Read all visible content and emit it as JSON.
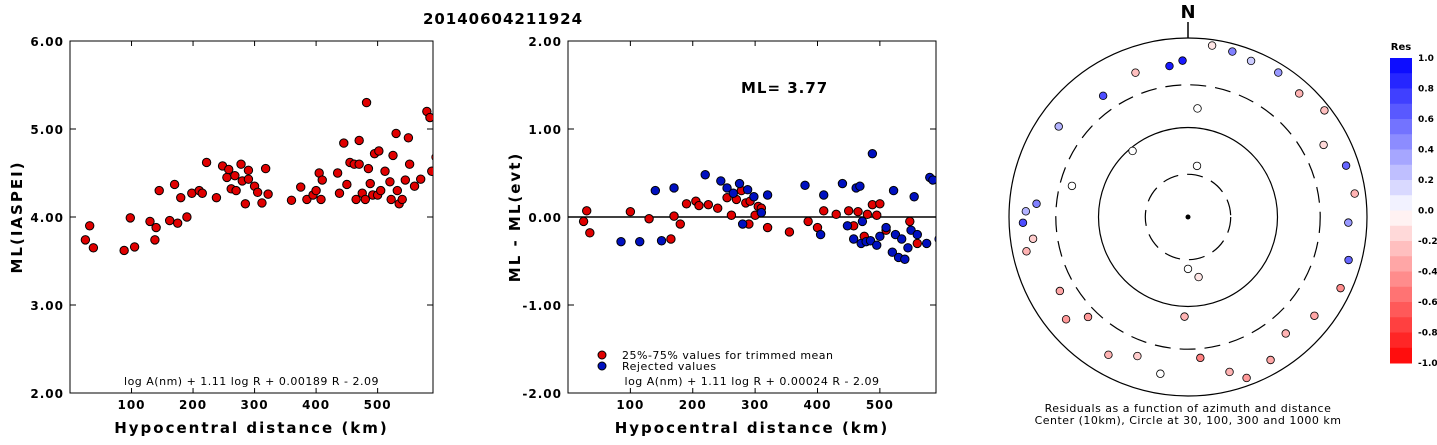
{
  "title": "20140604211924",
  "colors": {
    "red": "#e00000",
    "blue": "#0010c0",
    "axis": "#000000"
  },
  "chart_data": [
    {
      "type": "scatter",
      "ylabel": "ML(IASPEI)",
      "xlabel": "Hypocentral distance (km)",
      "xlim": [
        0,
        590
      ],
      "ylim": [
        2.0,
        6.0
      ],
      "xticks": [
        "100",
        "200",
        "300",
        "400",
        "500"
      ],
      "xtick_values": [
        100,
        200,
        300,
        400,
        500
      ],
      "yticks": [
        "2.00",
        "3.00",
        "4.00",
        "5.00",
        "6.00"
      ],
      "ytick_values": [
        2,
        3,
        4,
        5,
        6
      ],
      "formula": "log A(nm) + 1.11 log R + 0.00189 R - 2.09",
      "points": [
        [
          25,
          3.74
        ],
        [
          32,
          3.9
        ],
        [
          38,
          3.65
        ],
        [
          88,
          3.62
        ],
        [
          105,
          3.66
        ],
        [
          98,
          3.99
        ],
        [
          130,
          3.95
        ],
        [
          138,
          3.74
        ],
        [
          140,
          3.88
        ],
        [
          145,
          4.3
        ],
        [
          162,
          3.96
        ],
        [
          170,
          4.37
        ],
        [
          175,
          3.93
        ],
        [
          180,
          4.22
        ],
        [
          190,
          4.0
        ],
        [
          198,
          4.27
        ],
        [
          210,
          4.3
        ],
        [
          215,
          4.27
        ],
        [
          222,
          4.62
        ],
        [
          238,
          4.22
        ],
        [
          248,
          4.58
        ],
        [
          255,
          4.45
        ],
        [
          258,
          4.54
        ],
        [
          262,
          4.32
        ],
        [
          268,
          4.47
        ],
        [
          270,
          4.3
        ],
        [
          278,
          4.6
        ],
        [
          280,
          4.41
        ],
        [
          285,
          4.15
        ],
        [
          290,
          4.53
        ],
        [
          290,
          4.43
        ],
        [
          300,
          4.35
        ],
        [
          305,
          4.28
        ],
        [
          312,
          4.16
        ],
        [
          318,
          4.55
        ],
        [
          322,
          4.26
        ],
        [
          360,
          4.19
        ],
        [
          375,
          4.34
        ],
        [
          385,
          4.2
        ],
        [
          395,
          4.25
        ],
        [
          400,
          4.3
        ],
        [
          405,
          4.5
        ],
        [
          408,
          4.2
        ],
        [
          410,
          4.42
        ],
        [
          435,
          4.5
        ],
        [
          438,
          4.27
        ],
        [
          445,
          4.84
        ],
        [
          450,
          4.37
        ],
        [
          455,
          4.62
        ],
        [
          462,
          4.6
        ],
        [
          465,
          4.2
        ],
        [
          470,
          4.87
        ],
        [
          470,
          4.6
        ],
        [
          475,
          4.27
        ],
        [
          480,
          4.2
        ],
        [
          482,
          5.3
        ],
        [
          485,
          4.55
        ],
        [
          488,
          4.38
        ],
        [
          492,
          4.25
        ],
        [
          495,
          4.72
        ],
        [
          500,
          4.25
        ],
        [
          502,
          4.75
        ],
        [
          505,
          4.3
        ],
        [
          512,
          4.52
        ],
        [
          520,
          4.4
        ],
        [
          522,
          4.2
        ],
        [
          525,
          4.7
        ],
        [
          530,
          4.95
        ],
        [
          532,
          4.3
        ],
        [
          535,
          4.15
        ],
        [
          540,
          4.2
        ],
        [
          545,
          4.42
        ],
        [
          550,
          4.9
        ],
        [
          552,
          4.6
        ],
        [
          560,
          4.35
        ],
        [
          570,
          4.43
        ],
        [
          580,
          5.2
        ],
        [
          585,
          5.13
        ],
        [
          588,
          4.52
        ],
        [
          595,
          4.68
        ]
      ]
    },
    {
      "type": "scatter",
      "ylabel": "ML - ML(evt)",
      "xlabel": "Hypocentral distance (km)",
      "xlim": [
        0,
        590
      ],
      "ylim": [
        -2.0,
        2.0
      ],
      "xticks": [
        "100",
        "200",
        "300",
        "400",
        "500"
      ],
      "xtick_values": [
        100,
        200,
        300,
        400,
        500
      ],
      "yticks": [
        "-2.00",
        "-1.00",
        "0.00",
        "1.00",
        "2.00"
      ],
      "ytick_values": [
        -2,
        -1,
        0,
        1,
        2
      ],
      "reference_line": 0,
      "annotation": "ML= 3.77",
      "formula": "log A(nm) + 1.11 log R + 0.00024 R - 2.09",
      "legend": [
        "25%-75% values for trimmed mean",
        "Rejected values"
      ],
      "series": [
        {
          "name": "25%-75% values for trimmed mean",
          "color": "red",
          "points": [
            [
              25,
              -0.05
            ],
            [
              30,
              0.07
            ],
            [
              35,
              -0.18
            ],
            [
              100,
              0.06
            ],
            [
              130,
              -0.02
            ],
            [
              165,
              -0.25
            ],
            [
              170,
              0.01
            ],
            [
              180,
              -0.08
            ],
            [
              190,
              0.15
            ],
            [
              205,
              0.18
            ],
            [
              210,
              0.13
            ],
            [
              225,
              0.14
            ],
            [
              240,
              0.1
            ],
            [
              255,
              0.22
            ],
            [
              262,
              0.02
            ],
            [
              270,
              0.2
            ],
            [
              278,
              0.3
            ],
            [
              285,
              0.16
            ],
            [
              290,
              -0.08
            ],
            [
              292,
              0.18
            ],
            [
              300,
              0.02
            ],
            [
              305,
              0.12
            ],
            [
              310,
              0.1
            ],
            [
              320,
              -0.12
            ],
            [
              355,
              -0.17
            ],
            [
              385,
              -0.05
            ],
            [
              400,
              -0.12
            ],
            [
              410,
              0.07
            ],
            [
              430,
              0.03
            ],
            [
              450,
              0.07
            ],
            [
              458,
              -0.1
            ],
            [
              465,
              0.06
            ],
            [
              475,
              -0.22
            ],
            [
              480,
              0.03
            ],
            [
              488,
              0.14
            ],
            [
              495,
              0.02
            ],
            [
              500,
              0.15
            ],
            [
              510,
              -0.15
            ],
            [
              548,
              -0.05
            ],
            [
              560,
              -0.3
            ]
          ]
        },
        {
          "name": "Rejected values",
          "color": "blue",
          "points": [
            [
              85,
              -0.28
            ],
            [
              115,
              -0.28
            ],
            [
              140,
              0.3
            ],
            [
              150,
              -0.27
            ],
            [
              170,
              0.33
            ],
            [
              220,
              0.48
            ],
            [
              245,
              0.41
            ],
            [
              255,
              0.33
            ],
            [
              265,
              0.27
            ],
            [
              275,
              0.38
            ],
            [
              280,
              -0.08
            ],
            [
              288,
              0.31
            ],
            [
              298,
              0.23
            ],
            [
              310,
              0.05
            ],
            [
              320,
              0.25
            ],
            [
              380,
              0.36
            ],
            [
              405,
              -0.2
            ],
            [
              410,
              0.25
            ],
            [
              440,
              0.38
            ],
            [
              448,
              -0.1
            ],
            [
              458,
              -0.25
            ],
            [
              462,
              0.33
            ],
            [
              468,
              0.35
            ],
            [
              470,
              -0.3
            ],
            [
              472,
              -0.05
            ],
            [
              478,
              -0.28
            ],
            [
              485,
              -0.27
            ],
            [
              488,
              0.72
            ],
            [
              495,
              -0.32
            ],
            [
              500,
              -0.22
            ],
            [
              510,
              -0.12
            ],
            [
              520,
              -0.4
            ],
            [
              522,
              0.3
            ],
            [
              525,
              -0.2
            ],
            [
              530,
              -0.46
            ],
            [
              535,
              -0.25
            ],
            [
              540,
              -0.48
            ],
            [
              545,
              -0.35
            ],
            [
              550,
              -0.15
            ],
            [
              555,
              0.23
            ],
            [
              560,
              -0.2
            ],
            [
              575,
              -0.3
            ],
            [
              580,
              0.45
            ],
            [
              585,
              0.42
            ],
            [
              595,
              -0.25
            ]
          ]
        }
      ]
    },
    {
      "type": "polar_scatter",
      "north_label": "N",
      "caption_line1": "Residuals as a function of azimuth and distance",
      "caption_line2": "Center (10km), Circle at 30, 100, 300 and 1000 km",
      "rings_km": [
        30,
        100,
        300,
        1000
      ],
      "colorbar": {
        "title": "Res",
        "range": [
          -1.0,
          1.0
        ],
        "ticks": [
          "1.0",
          "0.8",
          "0.6",
          "0.4",
          "0.2",
          "0.0",
          "-0.2",
          "-0.4",
          "-0.6",
          "-0.8",
          "-1.0"
        ],
        "tick_values": [
          1.0,
          0.8,
          0.6,
          0.4,
          0.2,
          0.0,
          -0.2,
          -0.4,
          -0.6,
          -0.8,
          -1.0
        ]
      },
      "stations": [
        {
          "az": 10,
          "dist_km": 38,
          "res": 0.0
        },
        {
          "az": 180,
          "dist_km": 38,
          "res": 0.0
        },
        {
          "az": 170,
          "dist_km": 48,
          "res": -0.1
        },
        {
          "az": 320,
          "dist_km": 92,
          "res": 0.0
        },
        {
          "az": 5,
          "dist_km": 165,
          "res": 0.0
        },
        {
          "az": 353,
          "dist_km": 500,
          "res": 0.9
        },
        {
          "az": 358,
          "dist_km": 560,
          "res": 0.9
        },
        {
          "az": 340,
          "dist_km": 520,
          "res": -0.25
        },
        {
          "az": 325,
          "dist_km": 450,
          "res": 0.7
        },
        {
          "az": 305,
          "dist_km": 580,
          "res": 0.3
        },
        {
          "az": 285,
          "dist_km": 220,
          "res": 0.0
        },
        {
          "az": 275,
          "dist_km": 500,
          "res": 0.5
        },
        {
          "az": 272,
          "dist_km": 650,
          "res": 0.3
        },
        {
          "az": 268,
          "dist_km": 700,
          "res": 0.7
        },
        {
          "az": 262,
          "dist_km": 560,
          "res": -0.2
        },
        {
          "az": 258,
          "dist_km": 700,
          "res": -0.3
        },
        {
          "az": 240,
          "dist_km": 450,
          "res": -0.35
        },
        {
          "az": 230,
          "dist_km": 600,
          "res": -0.4
        },
        {
          "az": 225,
          "dist_km": 380,
          "res": -0.4
        },
        {
          "az": 210,
          "dist_km": 600,
          "res": -0.3
        },
        {
          "az": 200,
          "dist_km": 450,
          "res": -0.2
        },
        {
          "az": 190,
          "dist_km": 600,
          "res": 0.0
        },
        {
          "az": 182,
          "dist_km": 130,
          "res": -0.3
        },
        {
          "az": 175,
          "dist_km": 380,
          "res": -0.5
        },
        {
          "az": 165,
          "dist_km": 620,
          "res": -0.3
        },
        {
          "az": 160,
          "dist_km": 820,
          "res": -0.4
        },
        {
          "az": 150,
          "dist_km": 700,
          "res": -0.35
        },
        {
          "az": 140,
          "dist_km": 500,
          "res": -0.3
        },
        {
          "az": 128,
          "dist_km": 620,
          "res": -0.35
        },
        {
          "az": 115,
          "dist_km": 760,
          "res": -0.45
        },
        {
          "az": 105,
          "dist_km": 720,
          "res": 0.6
        },
        {
          "az": 92,
          "dist_km": 620,
          "res": 0.4
        },
        {
          "az": 82,
          "dist_km": 760,
          "res": -0.3
        },
        {
          "az": 72,
          "dist_km": 720,
          "res": 0.6
        },
        {
          "az": 62,
          "dist_km": 520,
          "res": -0.15
        },
        {
          "az": 52,
          "dist_km": 860,
          "res": -0.25
        },
        {
          "az": 42,
          "dist_km": 720,
          "res": -0.3
        },
        {
          "az": 32,
          "dist_km": 800,
          "res": 0.4
        },
        {
          "az": 22,
          "dist_km": 760,
          "res": 0.2
        },
        {
          "az": 15,
          "dist_km": 820,
          "res": 0.5
        },
        {
          "az": 8,
          "dist_km": 860,
          "res": -0.1
        }
      ]
    }
  ]
}
